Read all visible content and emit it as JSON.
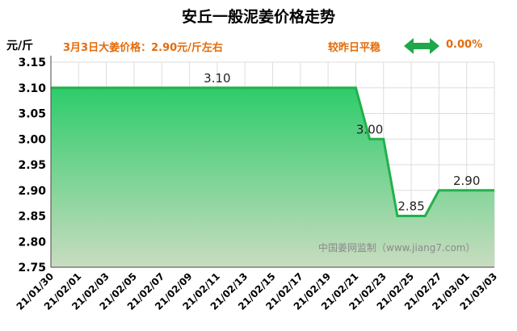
{
  "header": {
    "title": "安丘一般泥姜价格走势",
    "unit": "元/斤",
    "note": "3月3日大姜价格：2.90元/斤左右",
    "status": "较昨日平稳",
    "change": "0.00%"
  },
  "watermark": "中国姜网监制（www.jiang7.com）",
  "colors": {
    "line": "#22b14c",
    "fill_top": "#2ecc6a",
    "fill_bottom": "#c9dcc0",
    "grid": "#dddddd",
    "accent": "#e36c0a",
    "arrow": "#1fa84a"
  },
  "icon": "left-right-arrow-icon",
  "chart_data": {
    "type": "area",
    "ylim": [
      2.75,
      3.15
    ],
    "yticks": [
      "2.75",
      "2.80",
      "2.85",
      "2.90",
      "2.95",
      "3.00",
      "3.05",
      "3.10",
      "3.15"
    ],
    "xticks": [
      "21/01/30",
      "21/02/01",
      "21/02/03",
      "21/02/05",
      "21/02/07",
      "21/02/09",
      "21/02/11",
      "21/02/13",
      "21/02/15",
      "21/02/17",
      "21/02/19",
      "21/02/21",
      "21/02/23",
      "21/02/25",
      "21/02/27",
      "21/03/01",
      "21/03/03"
    ],
    "series": [
      {
        "x": [
          "21/01/30",
          "21/02/21",
          "21/02/22",
          "21/02/23",
          "21/02/24",
          "21/02/26",
          "21/02/27",
          "21/03/03"
        ],
        "values": [
          3.1,
          3.1,
          3.0,
          3.0,
          2.85,
          2.85,
          2.9,
          2.9
        ]
      }
    ],
    "data_labels": [
      {
        "x": "21/02/11",
        "value": 3.1,
        "text": "3.10"
      },
      {
        "x": "21/02/22",
        "value": 3.0,
        "text": "3.00"
      },
      {
        "x": "21/02/25",
        "value": 2.85,
        "text": "2.85"
      },
      {
        "x": "21/03/01",
        "value": 2.9,
        "text": "2.90"
      }
    ],
    "grid": true
  }
}
